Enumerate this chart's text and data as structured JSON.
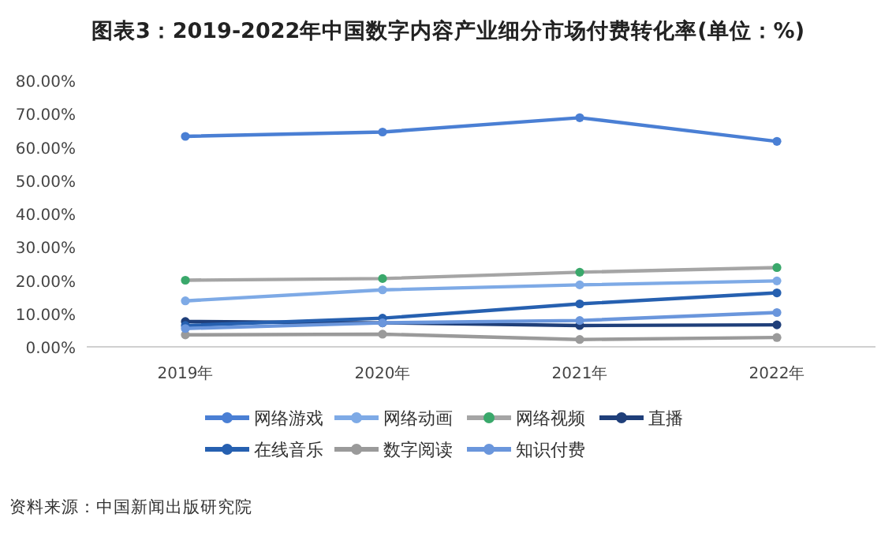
{
  "chart_data": {
    "type": "line",
    "title": "图表3：2019-2022年中国数字内容产业细分市场付费转化率(单位：%)",
    "categories": [
      "2019年",
      "2020年",
      "2021年",
      "2022年"
    ],
    "series": [
      {
        "name": "网络游戏",
        "color": "#4a7fd4",
        "values": [
          63.2,
          64.5,
          68.8,
          61.7
        ]
      },
      {
        "name": "网络动画",
        "color": "#7eaae6",
        "values": [
          13.8,
          17.1,
          18.6,
          19.8
        ]
      },
      {
        "name": "网络视频",
        "color": "#a5a5a5",
        "colors": [
          "#3aa86b",
          "#3aa86b",
          "#3aa86b",
          "#3aa86b"
        ],
        "values": [
          20.0,
          20.5,
          22.4,
          23.8
        ]
      },
      {
        "name": "直播",
        "color": "#1f3f7a",
        "values": [
          7.6,
          7.2,
          6.4,
          6.6
        ]
      },
      {
        "name": "在线音乐",
        "color": "#2660b0",
        "values": [
          6.4,
          8.6,
          12.9,
          16.2
        ]
      },
      {
        "name": "数字阅读",
        "color": "#9a9a9a",
        "values": [
          3.6,
          3.8,
          2.2,
          2.8
        ]
      },
      {
        "name": "知识付费",
        "color": "#6a96dc",
        "values": [
          5.5,
          7.2,
          7.9,
          10.3
        ]
      }
    ],
    "ylim": [
      0,
      80
    ],
    "yticks": [
      {
        "value": 0,
        "label": "0.00%"
      },
      {
        "value": 10,
        "label": "10.00%"
      },
      {
        "value": 20,
        "label": "20.00%"
      },
      {
        "value": 30,
        "label": "30.00%"
      },
      {
        "value": 40,
        "label": "40.00%"
      },
      {
        "value": 50,
        "label": "50.00%"
      },
      {
        "value": 60,
        "label": "60.00%"
      },
      {
        "value": 70,
        "label": "70.00%"
      },
      {
        "value": 80,
        "label": "80.00%"
      }
    ],
    "legend": "bottom",
    "marker": "circle",
    "line_style": "solid",
    "annotations": [
      "资料来源：中国新闻出版研究院"
    ]
  }
}
